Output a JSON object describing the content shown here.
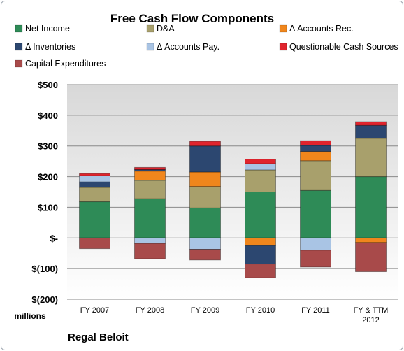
{
  "chart_data": {
    "type": "bar",
    "stacked": true,
    "title": "Free Cash Flow Components",
    "unit_label": "millions",
    "company": "Regal Beloit",
    "categories": [
      "FY 2007",
      "FY 2008",
      "FY 2009",
      "FY 2010",
      "FY 2011",
      "FY & TTM 2012"
    ],
    "ylim": [
      -200,
      500
    ],
    "yticks": [
      -200,
      -100,
      0,
      100,
      200,
      300,
      400,
      500
    ],
    "ytick_labels": [
      "$(200)",
      "$(100)",
      "$-",
      "$100",
      "$200",
      "$300",
      "$400",
      "$500"
    ],
    "grid": true,
    "legend_position": "top",
    "series": [
      {
        "name": "Net Income",
        "color": "#2e8b57",
        "values": [
          118,
          128,
          98,
          150,
          155,
          200
        ]
      },
      {
        "name": "D&A",
        "color": "#a8a06c",
        "values": [
          47,
          60,
          70,
          72,
          97,
          125
        ]
      },
      {
        "name": "Δ Accounts Rec.",
        "color": "#f0861c",
        "values": [
          0,
          30,
          47,
          -25,
          30,
          -15
        ]
      },
      {
        "name": "Δ Inventories",
        "color": "#2c4770",
        "values": [
          18,
          5,
          85,
          -60,
          20,
          42
        ]
      },
      {
        "name": "Δ Accounts Pay.",
        "color": "#a9c4e4",
        "values": [
          20,
          -18,
          -37,
          20,
          -40,
          0
        ]
      },
      {
        "name": "Questionable Cash Sources",
        "color": "#e0242d",
        "values": [
          7,
          7,
          15,
          15,
          15,
          12
        ]
      },
      {
        "name": "Capital Expenditures",
        "color": "#a84a4a",
        "values": [
          -35,
          -50,
          -35,
          -45,
          -55,
          -95
        ]
      }
    ]
  }
}
